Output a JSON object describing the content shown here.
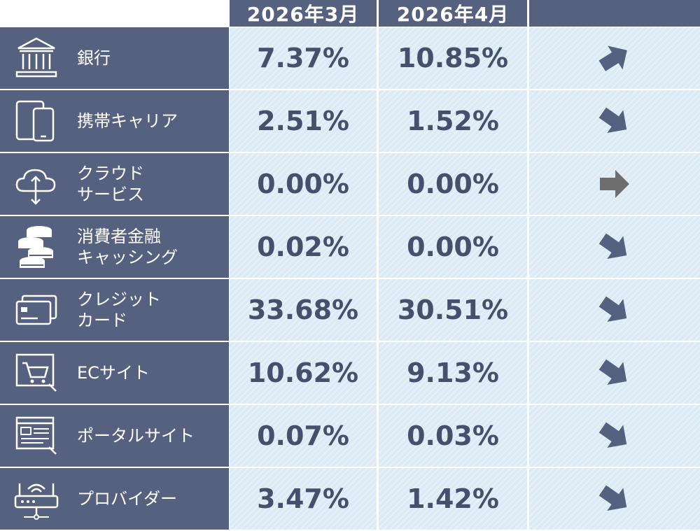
{
  "chart_data": {
    "type": "table",
    "columns": [
      "2026年3月",
      "2026年4月"
    ],
    "rows": [
      {
        "icon": "bank-icon",
        "label_lines": [
          "銀行"
        ],
        "mar": "7.37%",
        "apr": "10.85%",
        "trend": "up"
      },
      {
        "icon": "smartphone-icon",
        "label_lines": [
          "携帯キャリア"
        ],
        "mar": "2.51%",
        "apr": "1.52%",
        "trend": "down"
      },
      {
        "icon": "cloud-icon",
        "label_lines": [
          "クラウド",
          "サービス"
        ],
        "mar": "0.00%",
        "apr": "0.00%",
        "trend": "flat"
      },
      {
        "icon": "coins-icon",
        "label_lines": [
          "消費者金融",
          "キャッシング"
        ],
        "mar": "0.02%",
        "apr": "0.00%",
        "trend": "down"
      },
      {
        "icon": "credit-card-icon",
        "label_lines": [
          "クレジット",
          "カード"
        ],
        "mar": "33.68%",
        "apr": "30.51%",
        "trend": "down"
      },
      {
        "icon": "shopping-cart-icon",
        "label_lines": [
          "ECサイト"
        ],
        "mar": "10.62%",
        "apr": "9.13%",
        "trend": "down"
      },
      {
        "icon": "portal-icon",
        "label_lines": [
          "ポータルサイト"
        ],
        "mar": "0.07%",
        "apr": "0.03%",
        "trend": "down"
      },
      {
        "icon": "router-icon",
        "label_lines": [
          "プロバイダー"
        ],
        "mar": "3.47%",
        "apr": "1.42%",
        "trend": "down"
      }
    ]
  },
  "colors": {
    "category_bg": "#56607f",
    "cell_bg": "#dbeaf5",
    "value_text": "#46506c",
    "arrow_blue": "#56607f",
    "arrow_gray": "#6e6e6e"
  }
}
